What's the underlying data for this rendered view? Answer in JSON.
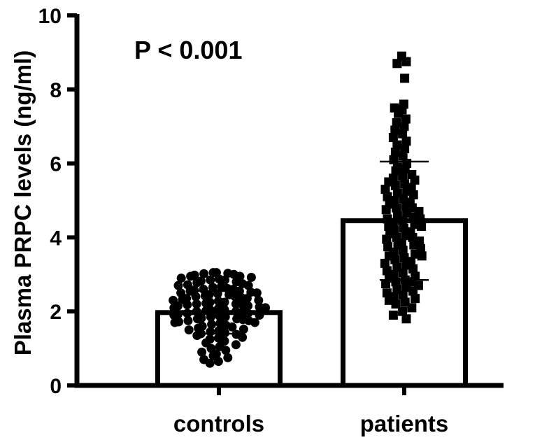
{
  "chart_data": {
    "type": "bar",
    "title": "",
    "xlabel": "",
    "ylabel": "Plasma PRPC levels (ng/ml)",
    "ylim": [
      0,
      10
    ],
    "yticks": [
      "0",
      "2",
      "4",
      "6",
      "8",
      "10"
    ],
    "categories": [
      "controls",
      "patients"
    ],
    "values": [
      1.97,
      4.45
    ],
    "error_upper": [
      2.55,
      6.05
    ],
    "error_lower": [
      1.4,
      2.85
    ],
    "annotation": "P < 0.001",
    "grid": false,
    "points": {
      "controls": {
        "marker": "circle",
        "y": [
          3.05,
          3.05,
          3.03,
          3.02,
          3.0,
          2.98,
          2.95,
          2.95,
          2.92,
          2.9,
          2.88,
          2.85,
          2.85,
          2.82,
          2.8,
          2.78,
          2.75,
          2.72,
          2.7,
          2.7,
          2.68,
          2.65,
          2.62,
          2.6,
          2.6,
          2.58,
          2.55,
          2.55,
          2.52,
          2.5,
          2.5,
          2.48,
          2.45,
          2.45,
          2.42,
          2.4,
          2.4,
          2.38,
          2.35,
          2.35,
          2.32,
          2.3,
          2.3,
          2.28,
          2.25,
          2.25,
          2.22,
          2.2,
          2.2,
          2.2,
          2.18,
          2.15,
          2.15,
          2.12,
          2.1,
          2.1,
          2.08,
          2.05,
          2.05,
          2.02,
          2.0,
          2.0,
          1.98,
          1.95,
          1.95,
          1.92,
          1.9,
          1.9,
          1.88,
          1.85,
          1.85,
          1.82,
          1.8,
          1.8,
          1.78,
          1.75,
          1.75,
          1.72,
          1.7,
          1.7,
          1.68,
          1.65,
          1.62,
          1.6,
          1.58,
          1.55,
          1.52,
          1.5,
          1.48,
          1.45,
          1.42,
          1.4,
          1.38,
          1.35,
          1.3,
          1.28,
          1.25,
          1.2,
          1.15,
          1.1,
          1.05,
          1.0,
          0.95,
          0.9,
          0.85,
          0.8,
          0.75,
          0.7,
          0.65,
          0.6
        ]
      },
      "patients": {
        "marker": "square",
        "y": [
          8.9,
          8.75,
          8.7,
          8.3,
          7.6,
          7.5,
          7.45,
          7.35,
          7.2,
          7.1,
          7.0,
          6.9,
          6.8,
          6.7,
          6.6,
          6.5,
          6.4,
          6.3,
          6.2,
          6.1,
          6.0,
          5.9,
          5.85,
          5.8,
          5.7,
          5.65,
          5.6,
          5.55,
          5.5,
          5.45,
          5.4,
          5.35,
          5.3,
          5.25,
          5.2,
          5.15,
          5.1,
          5.05,
          5.0,
          4.95,
          4.9,
          4.85,
          4.8,
          4.8,
          4.75,
          4.7,
          4.65,
          4.6,
          4.55,
          4.5,
          4.5,
          4.45,
          4.4,
          4.35,
          4.3,
          4.3,
          4.25,
          4.2,
          4.15,
          4.1,
          4.05,
          4.0,
          4.0,
          3.95,
          3.9,
          3.85,
          3.8,
          3.8,
          3.75,
          3.7,
          3.65,
          3.6,
          3.55,
          3.5,
          3.5,
          3.45,
          3.4,
          3.35,
          3.3,
          3.25,
          3.2,
          3.15,
          3.1,
          3.05,
          3.0,
          2.95,
          2.9,
          2.85,
          2.8,
          2.8,
          2.75,
          2.7,
          2.65,
          2.6,
          2.55,
          2.5,
          2.45,
          2.4,
          2.35,
          2.3,
          2.25,
          2.2,
          2.1,
          2.0,
          1.9,
          1.8
        ]
      }
    }
  }
}
